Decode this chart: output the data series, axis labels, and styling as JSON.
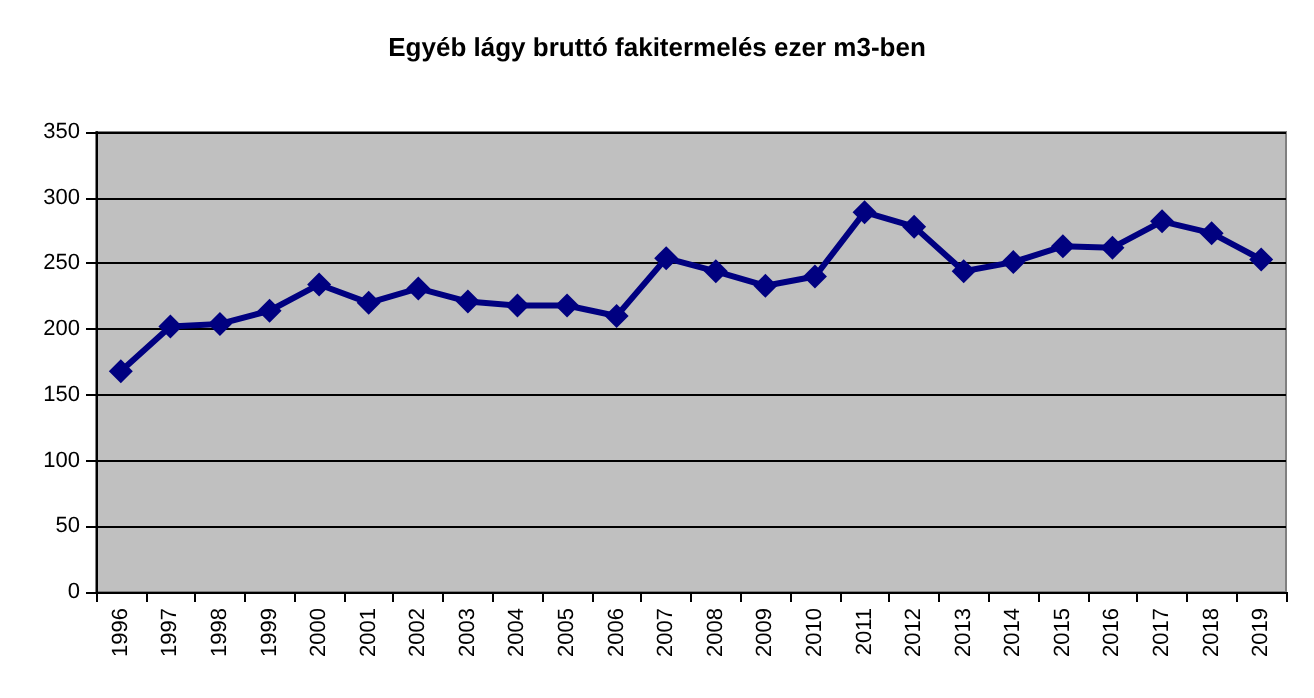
{
  "chart_data": {
    "type": "line",
    "title": "Egyéb lágy bruttó fakitermelés ezer m3-ben",
    "categories": [
      "1996",
      "1997",
      "1998",
      "1999",
      "2000",
      "2001",
      "2002",
      "2003",
      "2004",
      "2005",
      "2006",
      "2007",
      "2008",
      "2009",
      "2010",
      "2011",
      "2012",
      "2013",
      "2014",
      "2015",
      "2016",
      "2017",
      "2018",
      "2019"
    ],
    "series": [
      {
        "color": "#000080",
        "values": [
          168,
          202,
          204,
          214,
          234,
          220,
          231,
          221,
          218,
          218,
          210,
          254,
          244,
          233,
          240,
          289,
          278,
          244,
          251,
          263,
          262,
          282,
          273,
          253
        ]
      }
    ],
    "ylim": [
      0,
      350
    ],
    "yticks": [
      0,
      50,
      100,
      150,
      200,
      250,
      300,
      350
    ],
    "grid": "y",
    "marker": "diamond",
    "line_style": "solid"
  }
}
